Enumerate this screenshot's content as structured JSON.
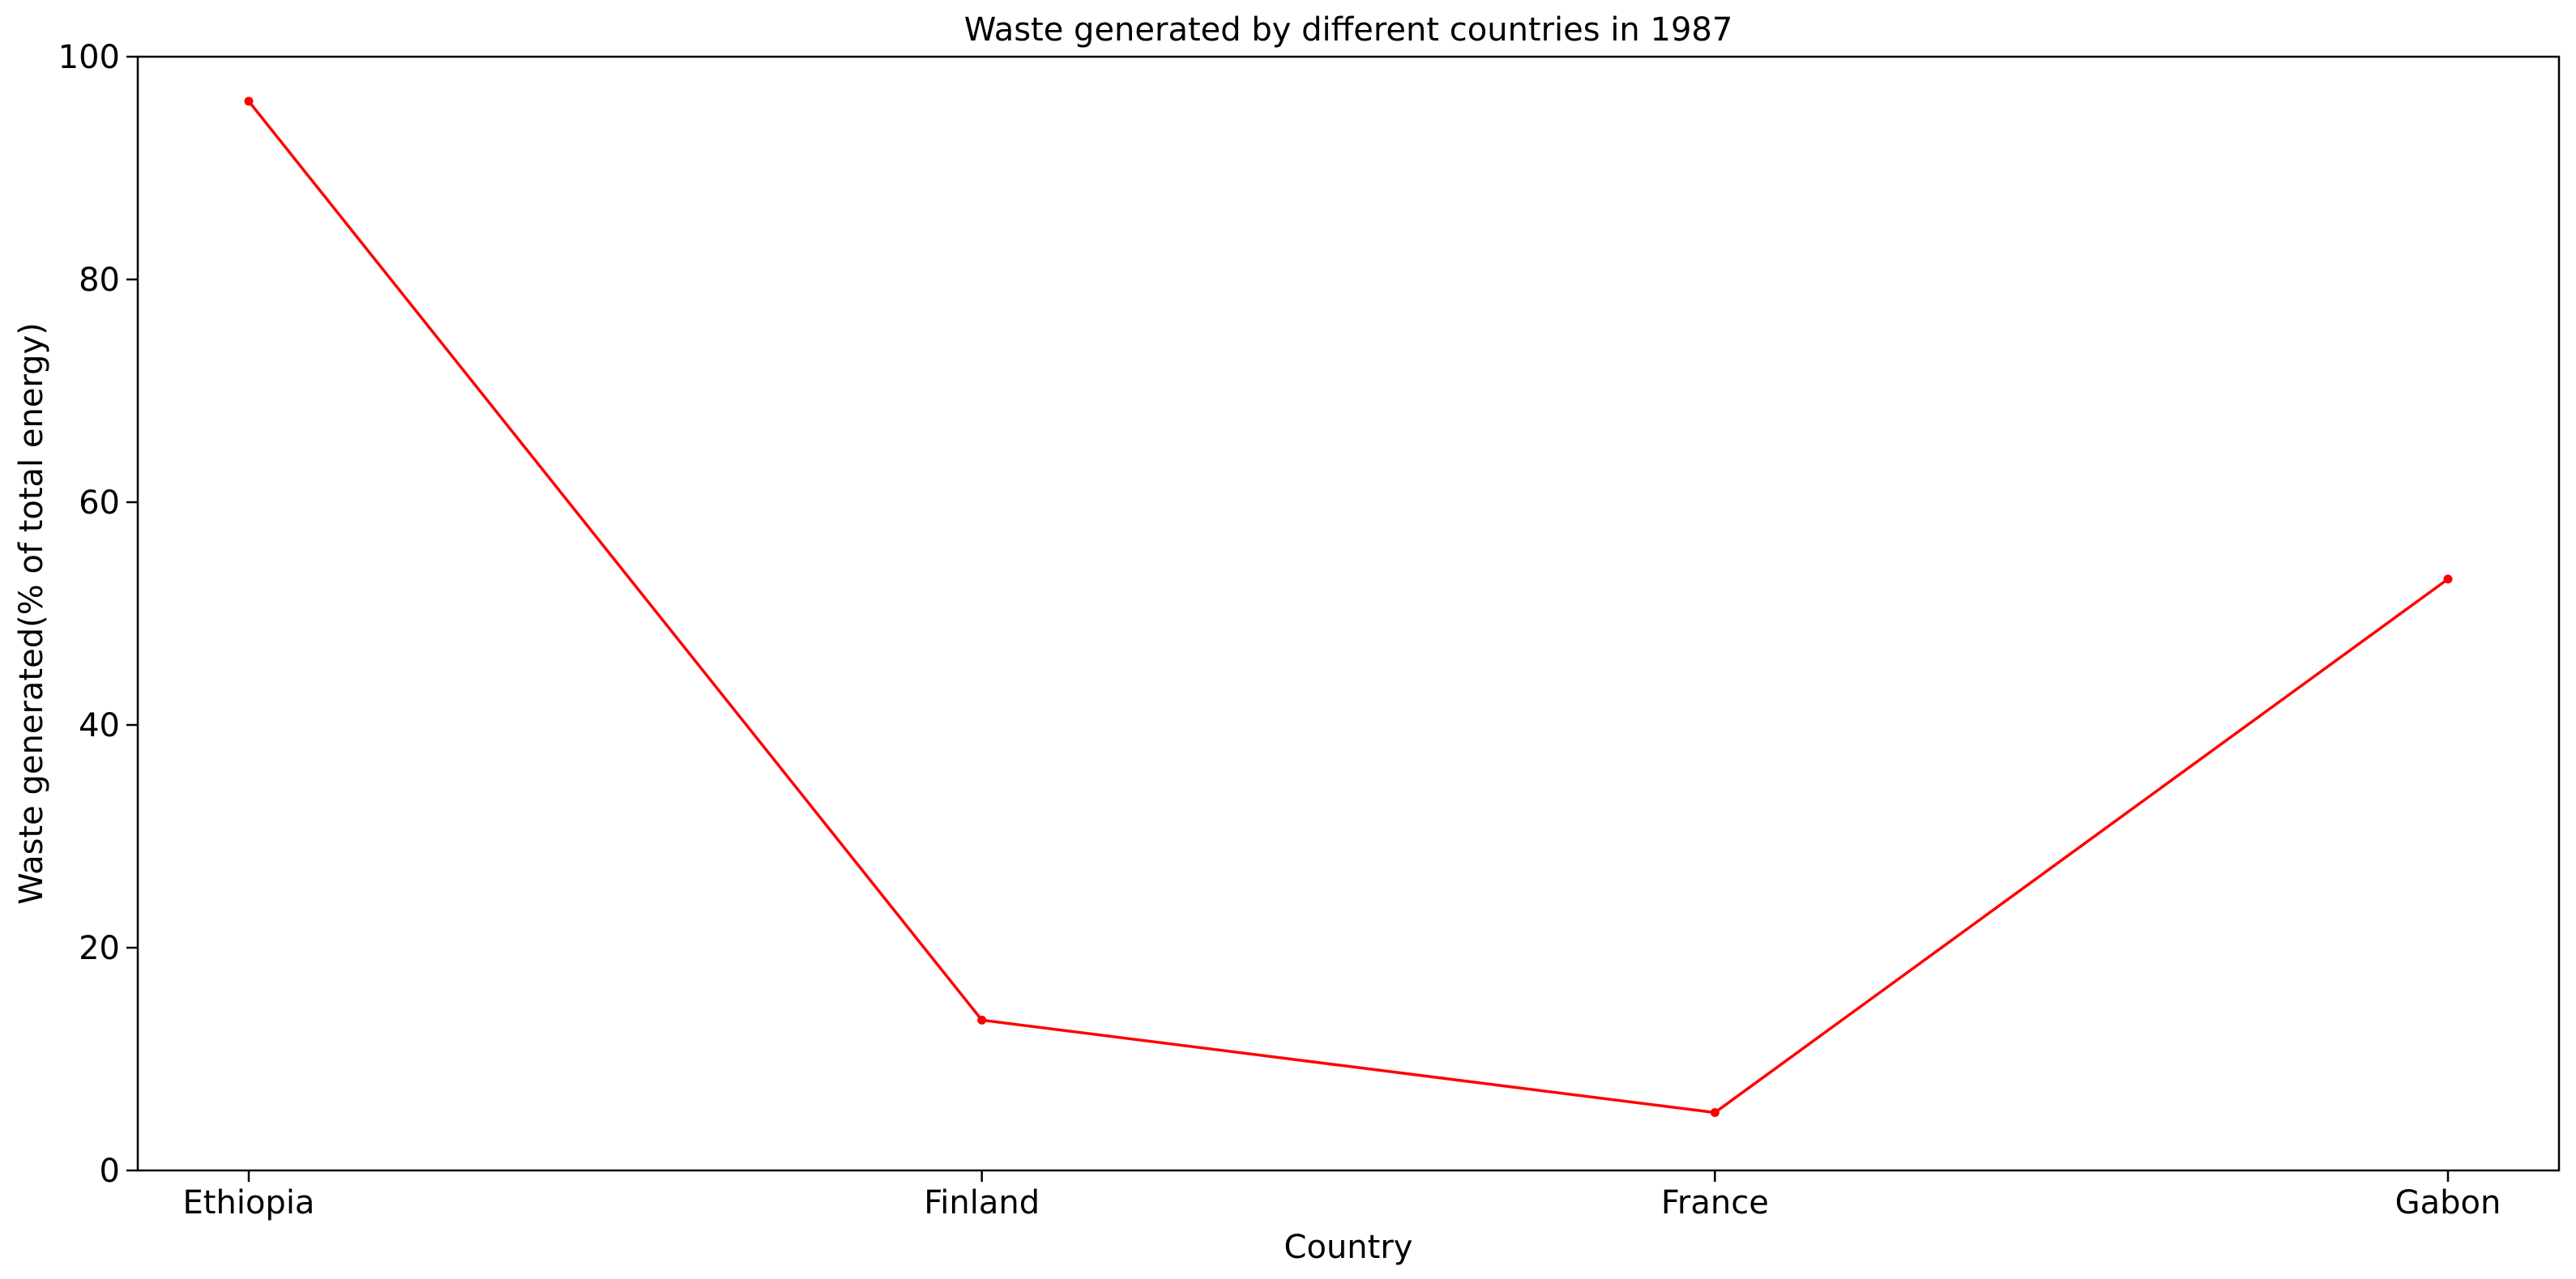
{
  "chart_data": {
    "type": "line",
    "title": "Waste generated by different countries in 1987",
    "xlabel": "Country",
    "ylabel": "Waste generated(% of total energy)",
    "categories": [
      "Ethiopia",
      "Finland",
      "France",
      "Gabon"
    ],
    "series": [
      {
        "values": [
          96.0,
          13.5,
          5.2,
          53.1
        ]
      }
    ],
    "ylim": [
      0,
      100
    ],
    "yticks": [
      0,
      20,
      40,
      60,
      80,
      100
    ],
    "grid": false,
    "line_color": "#ff0000",
    "marker": "point"
  }
}
